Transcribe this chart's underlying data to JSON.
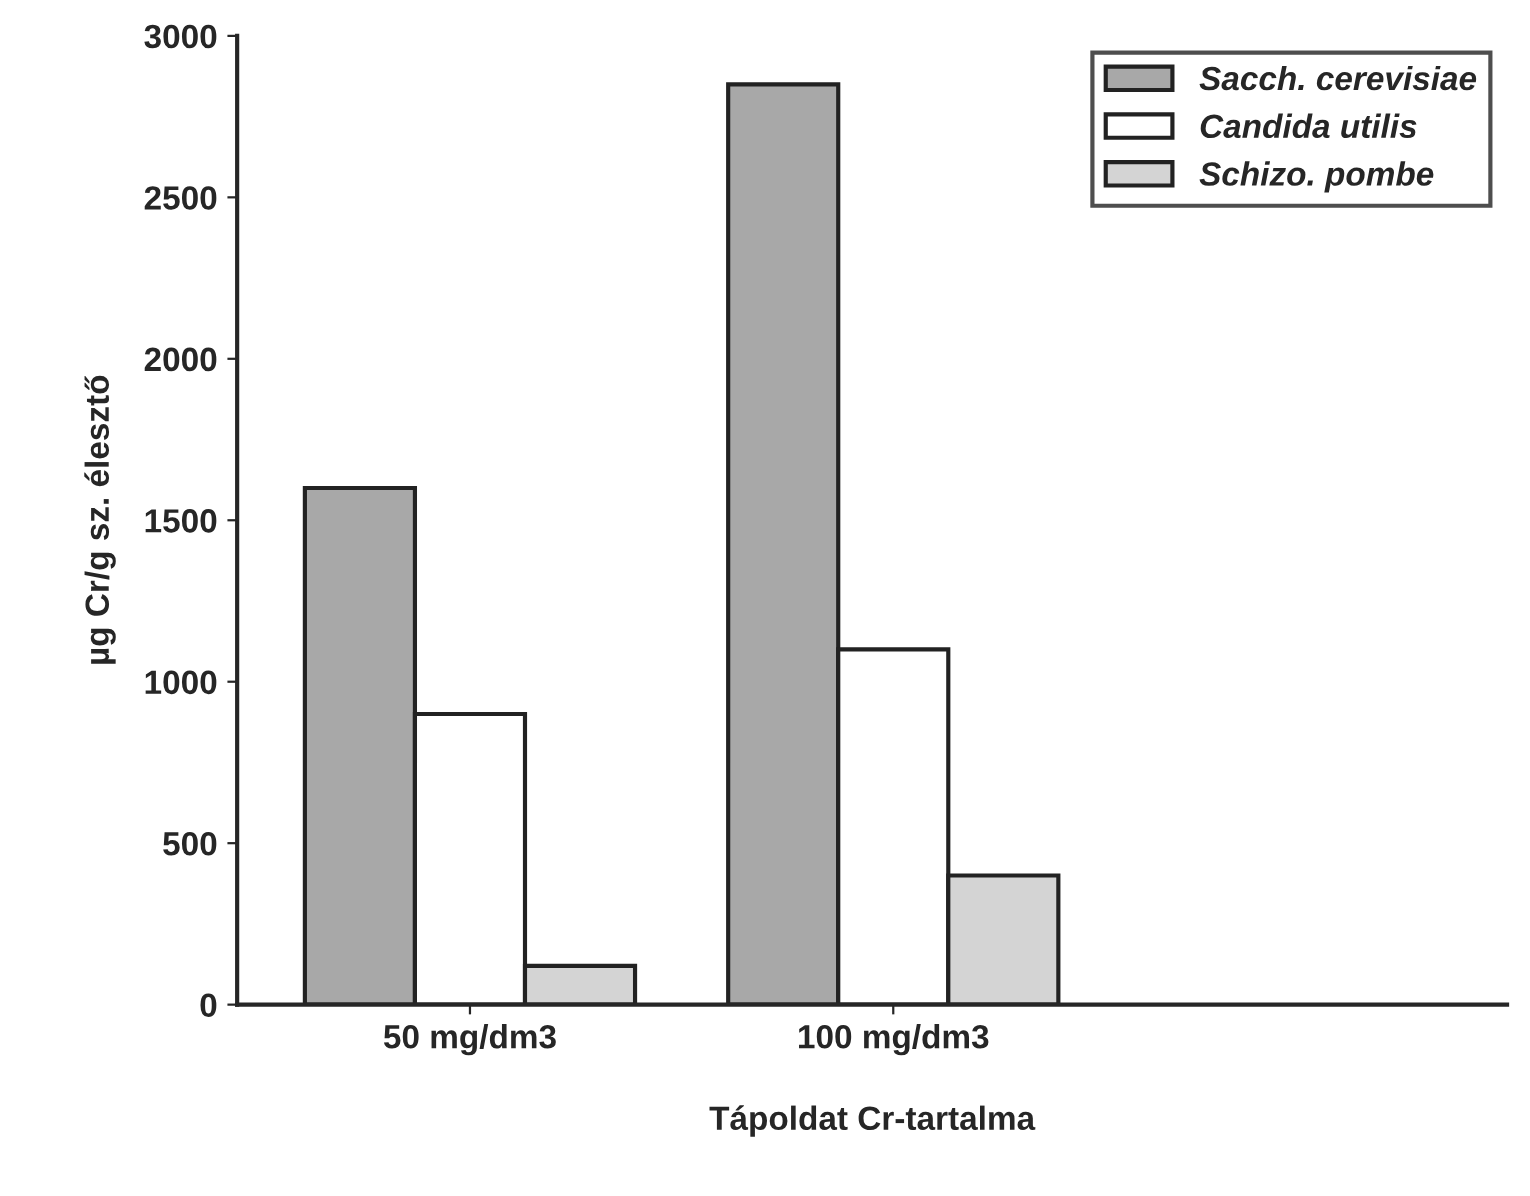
{
  "chart_data": {
    "type": "bar",
    "xlabel": "Tápoldat Cr-tartalma",
    "ylabel": "µg Cr/g sz. élesztő",
    "categories": [
      "50 mg/dm3",
      "100 mg/dm3"
    ],
    "series": [
      {
        "name": "Sacch. cerevisiae",
        "color": "#a8a8a8",
        "values": [
          1600,
          2850
        ]
      },
      {
        "name": "Candida utilis",
        "color": "#ffffff",
        "values": [
          900,
          1100
        ]
      },
      {
        "name": "Schizo. pombe",
        "color": "#d4d4d4",
        "values": [
          120,
          400
        ]
      }
    ],
    "ylim": [
      0,
      3000
    ],
    "yticks": [
      0,
      500,
      1000,
      1500,
      2000,
      2500,
      3000
    ],
    "grid": false,
    "legend": "top right"
  }
}
